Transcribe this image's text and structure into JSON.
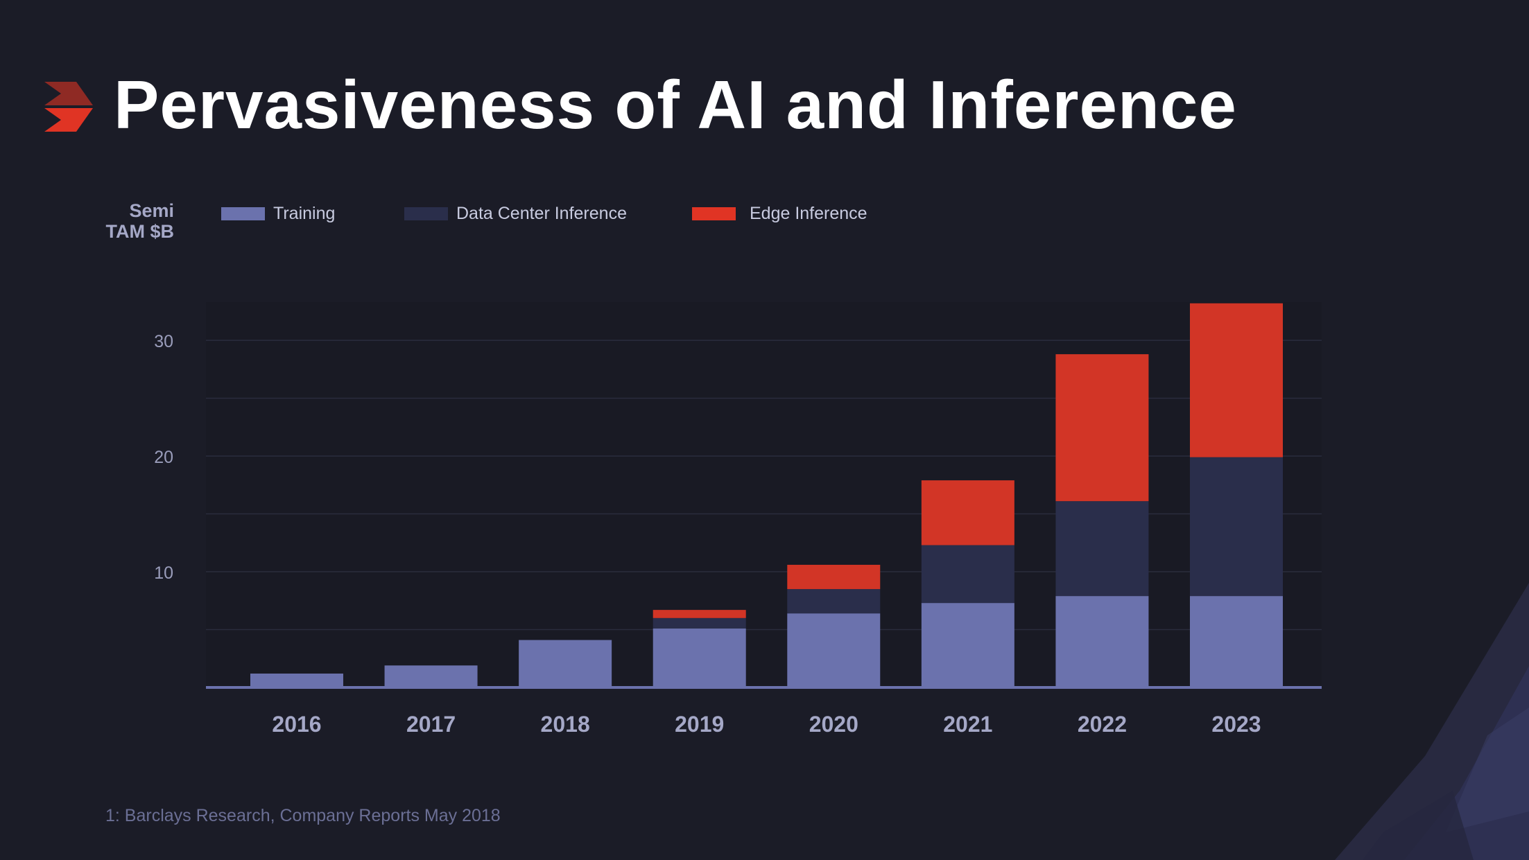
{
  "slide": {
    "title": "Pervasiveness of AI and Inference",
    "y_axis_label_line1": "Semi",
    "y_axis_label_line2": "TAM $B",
    "footnote": "1: Barclays Research, Company Reports May 2018",
    "logo_icon": "red-chevron-logo-icon",
    "colors": {
      "background": "#1b1c27",
      "accent_red": "#d23526",
      "title": "#ffffff"
    }
  },
  "legend": [
    {
      "label": "Training",
      "color": "#6b72ad"
    },
    {
      "label": "Data Center Inference",
      "color": "#2a2e4b"
    },
    {
      "label": "Edge Inference",
      "color": "#e03424"
    }
  ],
  "chart_data": {
    "type": "bar",
    "stacked": true,
    "title": "Pervasiveness of AI and Inference",
    "ylabel": "Semi TAM $B",
    "xlabel": "",
    "ylim": [
      0,
      33.3
    ],
    "yticks": [
      10,
      20,
      30
    ],
    "grid": true,
    "legend_position": "top-left",
    "categories": [
      "2016",
      "2017",
      "2018",
      "2019",
      "2020",
      "2021",
      "2022",
      "2023"
    ],
    "series": [
      {
        "name": "Training",
        "color": "#6b72ad",
        "values": [
          1.2,
          1.9,
          4.1,
          5.1,
          6.4,
          7.3,
          7.9,
          7.9
        ]
      },
      {
        "name": "Data Center Inference",
        "color": "#2a2e4b",
        "values": [
          0,
          0,
          0,
          0.9,
          2.1,
          5.0,
          8.2,
          12.0
        ]
      },
      {
        "name": "Edge Inference",
        "color": "#d23526",
        "values": [
          0,
          0,
          0,
          0.7,
          2.1,
          5.6,
          12.7,
          13.3
        ]
      }
    ]
  }
}
